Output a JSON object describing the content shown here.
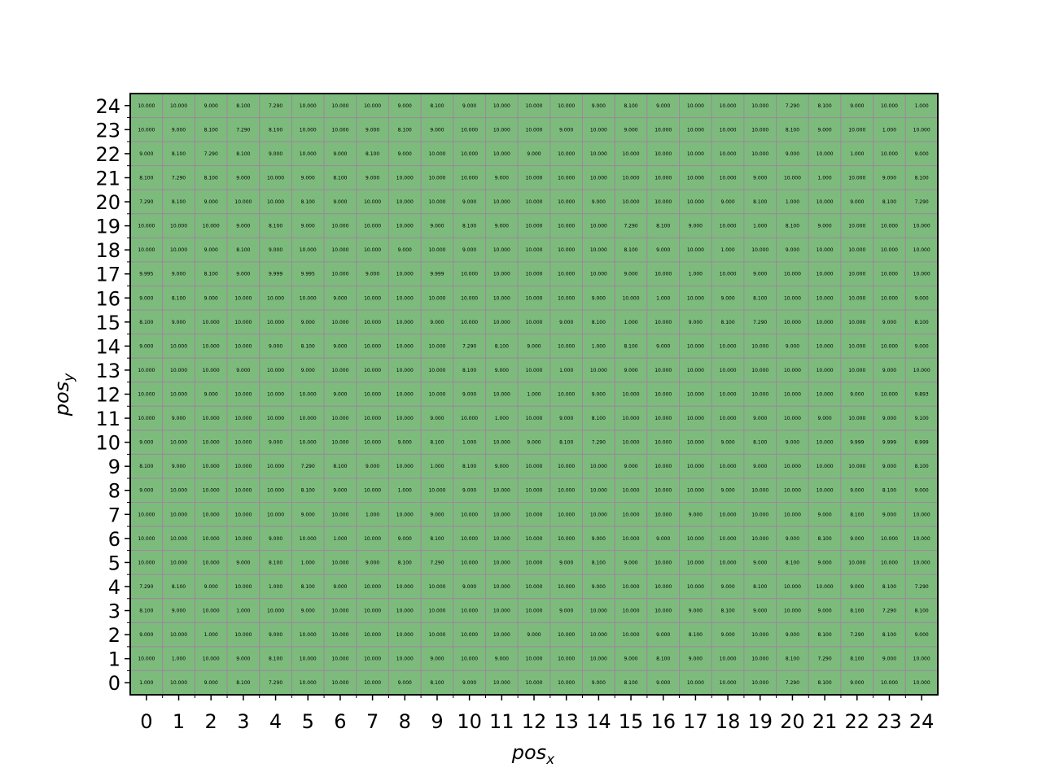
{
  "chart_data": {
    "type": "heatmap",
    "xlabel": "pos",
    "xlabel_sub": "x",
    "ylabel": "pos",
    "ylabel_sub": "y",
    "x_ticks": [
      "0",
      "1",
      "2",
      "3",
      "4",
      "5",
      "6",
      "7",
      "8",
      "9",
      "10",
      "11",
      "12",
      "13",
      "14",
      "15",
      "16",
      "17",
      "18",
      "19",
      "20",
      "21",
      "22",
      "23",
      "24"
    ],
    "y_ticks": [
      "0",
      "1",
      "2",
      "3",
      "4",
      "5",
      "6",
      "7",
      "8",
      "9",
      "10",
      "11",
      "12",
      "13",
      "14",
      "15",
      "16",
      "17",
      "18",
      "19",
      "20",
      "21",
      "22",
      "23",
      "24"
    ],
    "xlim": [
      -0.5,
      24.5
    ],
    "ylim": [
      -0.5,
      24.5
    ],
    "cell_color": "#7dbb7d",
    "cell_border_color": "#9a8a9a",
    "grid": true,
    "rows": [
      {
        "y": 24,
        "values": [
          "10.000",
          "10.000",
          "9.000",
          "8.100",
          "7.290",
          "10.000",
          "10.000",
          "10.000",
          "9.000",
          "8.100",
          "9.000",
          "10.000",
          "10.000",
          "10.000",
          "9.000",
          "8.100",
          "9.000",
          "10.000",
          "10.000",
          "10.000",
          "7.290",
          "8.100",
          "9.000",
          "10.000",
          "1.000"
        ]
      },
      {
        "y": 23,
        "values": [
          "10.000",
          "9.000",
          "8.100",
          "7.290",
          "8.100",
          "10.000",
          "10.000",
          "9.000",
          "8.100",
          "9.000",
          "10.000",
          "10.000",
          "10.000",
          "9.000",
          "10.000",
          "9.000",
          "10.000",
          "10.000",
          "10.000",
          "10.000",
          "8.100",
          "9.000",
          "10.000",
          "1.000",
          "10.000"
        ]
      },
      {
        "y": 22,
        "values": [
          "9.000",
          "8.100",
          "7.290",
          "8.100",
          "9.000",
          "10.000",
          "9.000",
          "8.100",
          "9.000",
          "10.000",
          "10.000",
          "10.000",
          "9.000",
          "10.000",
          "10.000",
          "10.000",
          "10.000",
          "10.000",
          "10.000",
          "10.000",
          "9.000",
          "10.000",
          "1.000",
          "10.000",
          "9.000"
        ]
      },
      {
        "y": 21,
        "values": [
          "8.100",
          "7.290",
          "8.100",
          "9.000",
          "10.000",
          "9.000",
          "8.100",
          "9.000",
          "10.000",
          "10.000",
          "10.000",
          "9.000",
          "10.000",
          "10.000",
          "10.000",
          "10.000",
          "10.000",
          "10.000",
          "10.000",
          "9.000",
          "10.000",
          "1.000",
          "10.000",
          "9.000",
          "8.100"
        ]
      },
      {
        "y": 20,
        "values": [
          "7.290",
          "8.100",
          "9.000",
          "10.000",
          "10.000",
          "8.100",
          "9.000",
          "10.000",
          "10.000",
          "10.000",
          "9.000",
          "10.000",
          "10.000",
          "10.000",
          "9.000",
          "10.000",
          "10.000",
          "10.000",
          "9.000",
          "8.100",
          "1.000",
          "10.000",
          "9.000",
          "8.100",
          "7.290"
        ]
      },
      {
        "y": 19,
        "values": [
          "10.000",
          "10.000",
          "10.000",
          "9.000",
          "8.100",
          "9.000",
          "10.000",
          "10.000",
          "10.000",
          "9.000",
          "8.100",
          "9.000",
          "10.000",
          "10.000",
          "10.000",
          "7.290",
          "8.100",
          "9.000",
          "10.000",
          "1.000",
          "8.100",
          "9.000",
          "10.000",
          "10.000",
          "10.000"
        ]
      },
      {
        "y": 18,
        "values": [
          "10.000",
          "10.000",
          "9.000",
          "8.100",
          "9.000",
          "10.000",
          "10.000",
          "10.000",
          "9.000",
          "10.000",
          "9.000",
          "10.000",
          "10.000",
          "10.000",
          "10.000",
          "8.100",
          "9.000",
          "10.000",
          "1.000",
          "10.000",
          "9.000",
          "10.000",
          "10.000",
          "10.000",
          "10.000"
        ]
      },
      {
        "y": 17,
        "values": [
          "9.995",
          "9.000",
          "8.100",
          "9.000",
          "9.999",
          "9.995",
          "10.000",
          "9.000",
          "10.000",
          "9.999",
          "10.000",
          "10.000",
          "10.000",
          "10.000",
          "10.000",
          "9.000",
          "10.000",
          "1.000",
          "10.000",
          "9.000",
          "10.000",
          "10.000",
          "10.000",
          "10.000",
          "10.000"
        ]
      },
      {
        "y": 16,
        "values": [
          "9.000",
          "8.100",
          "9.000",
          "10.000",
          "10.000",
          "10.000",
          "9.000",
          "10.000",
          "10.000",
          "10.000",
          "10.000",
          "10.000",
          "10.000",
          "10.000",
          "9.000",
          "10.000",
          "1.000",
          "10.000",
          "9.000",
          "8.100",
          "10.000",
          "10.000",
          "10.000",
          "10.000",
          "9.000"
        ]
      },
      {
        "y": 15,
        "values": [
          "8.100",
          "9.000",
          "10.000",
          "10.000",
          "10.000",
          "9.000",
          "10.000",
          "10.000",
          "10.000",
          "9.000",
          "10.000",
          "10.000",
          "10.000",
          "9.000",
          "8.100",
          "1.000",
          "10.000",
          "9.000",
          "8.100",
          "7.290",
          "10.000",
          "10.000",
          "10.000",
          "9.000",
          "8.100"
        ]
      },
      {
        "y": 14,
        "values": [
          "9.000",
          "10.000",
          "10.000",
          "10.000",
          "9.000",
          "8.100",
          "9.000",
          "10.000",
          "10.000",
          "10.000",
          "7.290",
          "8.100",
          "9.000",
          "10.000",
          "1.000",
          "8.100",
          "9.000",
          "10.000",
          "10.000",
          "10.000",
          "9.000",
          "10.000",
          "10.000",
          "10.000",
          "9.000"
        ]
      },
      {
        "y": 13,
        "values": [
          "10.000",
          "10.000",
          "10.000",
          "9.000",
          "10.000",
          "9.000",
          "10.000",
          "10.000",
          "10.000",
          "10.000",
          "8.100",
          "9.000",
          "10.000",
          "1.000",
          "10.000",
          "9.000",
          "10.000",
          "10.000",
          "10.000",
          "10.000",
          "10.000",
          "10.000",
          "10.000",
          "9.000",
          "10.000"
        ]
      },
      {
        "y": 12,
        "values": [
          "10.000",
          "10.000",
          "9.000",
          "10.000",
          "10.000",
          "10.000",
          "9.000",
          "10.000",
          "10.000",
          "10.000",
          "9.000",
          "10.000",
          "1.000",
          "10.000",
          "9.000",
          "10.000",
          "10.000",
          "10.000",
          "10.000",
          "10.000",
          "10.000",
          "10.000",
          "9.000",
          "10.000",
          "9.893"
        ]
      },
      {
        "y": 11,
        "values": [
          "10.000",
          "9.000",
          "10.000",
          "10.000",
          "10.000",
          "10.000",
          "10.000",
          "10.000",
          "10.000",
          "9.000",
          "10.000",
          "1.000",
          "10.000",
          "9.000",
          "8.100",
          "10.000",
          "10.000",
          "10.000",
          "10.000",
          "9.000",
          "10.000",
          "9.000",
          "10.000",
          "9.000",
          "9.100"
        ]
      },
      {
        "y": 10,
        "values": [
          "9.000",
          "10.000",
          "10.000",
          "10.000",
          "9.000",
          "10.000",
          "10.000",
          "10.000",
          "9.000",
          "8.100",
          "1.000",
          "10.000",
          "9.000",
          "8.100",
          "7.290",
          "10.000",
          "10.000",
          "10.000",
          "9.000",
          "8.100",
          "9.000",
          "10.000",
          "9.999",
          "9.999",
          "8.999"
        ]
      },
      {
        "y": 9,
        "values": [
          "8.100",
          "9.000",
          "10.000",
          "10.000",
          "10.000",
          "7.290",
          "8.100",
          "9.000",
          "10.000",
          "1.000",
          "8.100",
          "9.000",
          "10.000",
          "10.000",
          "10.000",
          "9.000",
          "10.000",
          "10.000",
          "10.000",
          "9.000",
          "10.000",
          "10.000",
          "10.000",
          "9.000",
          "8.100"
        ]
      },
      {
        "y": 8,
        "values": [
          "9.000",
          "10.000",
          "10.000",
          "10.000",
          "10.000",
          "8.100",
          "9.000",
          "10.000",
          "1.000",
          "10.000",
          "9.000",
          "10.000",
          "10.000",
          "10.000",
          "10.000",
          "10.000",
          "10.000",
          "10.000",
          "9.000",
          "10.000",
          "10.000",
          "10.000",
          "9.000",
          "8.100",
          "9.000"
        ]
      },
      {
        "y": 7,
        "values": [
          "10.000",
          "10.000",
          "10.000",
          "10.000",
          "10.000",
          "9.000",
          "10.000",
          "1.000",
          "10.000",
          "9.000",
          "10.000",
          "10.000",
          "10.000",
          "10.000",
          "10.000",
          "10.000",
          "10.000",
          "9.000",
          "10.000",
          "10.000",
          "10.000",
          "9.000",
          "8.100",
          "9.000",
          "10.000"
        ]
      },
      {
        "y": 6,
        "values": [
          "10.000",
          "10.000",
          "10.000",
          "10.000",
          "9.000",
          "10.000",
          "1.000",
          "10.000",
          "9.000",
          "8.100",
          "10.000",
          "10.000",
          "10.000",
          "10.000",
          "9.000",
          "10.000",
          "9.000",
          "10.000",
          "10.000",
          "10.000",
          "9.000",
          "8.100",
          "9.000",
          "10.000",
          "10.000"
        ]
      },
      {
        "y": 5,
        "values": [
          "10.000",
          "10.000",
          "10.000",
          "9.000",
          "8.100",
          "1.000",
          "10.000",
          "9.000",
          "8.100",
          "7.290",
          "10.000",
          "10.000",
          "10.000",
          "9.000",
          "8.100",
          "9.000",
          "10.000",
          "10.000",
          "10.000",
          "9.000",
          "8.100",
          "9.000",
          "10.000",
          "10.000",
          "10.000"
        ]
      },
      {
        "y": 4,
        "values": [
          "7.290",
          "8.100",
          "9.000",
          "10.000",
          "1.000",
          "8.100",
          "9.000",
          "10.000",
          "10.000",
          "10.000",
          "9.000",
          "10.000",
          "10.000",
          "10.000",
          "9.000",
          "10.000",
          "10.000",
          "10.000",
          "9.000",
          "8.100",
          "10.000",
          "10.000",
          "9.000",
          "8.100",
          "7.290"
        ]
      },
      {
        "y": 3,
        "values": [
          "8.100",
          "9.000",
          "10.000",
          "1.000",
          "10.000",
          "9.000",
          "10.000",
          "10.000",
          "10.000",
          "10.000",
          "10.000",
          "10.000",
          "10.000",
          "9.000",
          "10.000",
          "10.000",
          "10.000",
          "9.000",
          "8.100",
          "9.000",
          "10.000",
          "9.000",
          "8.100",
          "7.290",
          "8.100"
        ]
      },
      {
        "y": 2,
        "values": [
          "9.000",
          "10.000",
          "1.000",
          "10.000",
          "9.000",
          "10.000",
          "10.000",
          "10.000",
          "10.000",
          "10.000",
          "10.000",
          "10.000",
          "9.000",
          "10.000",
          "10.000",
          "10.000",
          "9.000",
          "8.100",
          "9.000",
          "10.000",
          "9.000",
          "8.100",
          "7.290",
          "8.100",
          "9.000"
        ]
      },
      {
        "y": 1,
        "values": [
          "10.000",
          "1.000",
          "10.000",
          "9.000",
          "8.100",
          "10.000",
          "10.000",
          "10.000",
          "10.000",
          "9.000",
          "10.000",
          "9.000",
          "10.000",
          "10.000",
          "10.000",
          "9.000",
          "8.100",
          "9.000",
          "10.000",
          "10.000",
          "8.100",
          "7.290",
          "8.100",
          "9.000",
          "10.000"
        ]
      },
      {
        "y": 0,
        "values": [
          "1.000",
          "10.000",
          "9.000",
          "8.100",
          "7.290",
          "10.000",
          "10.000",
          "10.000",
          "9.000",
          "8.100",
          "9.000",
          "10.000",
          "10.000",
          "10.000",
          "9.000",
          "8.100",
          "9.000",
          "10.000",
          "10.000",
          "10.000",
          "7.290",
          "8.100",
          "9.000",
          "10.000",
          "10.000"
        ]
      }
    ]
  }
}
